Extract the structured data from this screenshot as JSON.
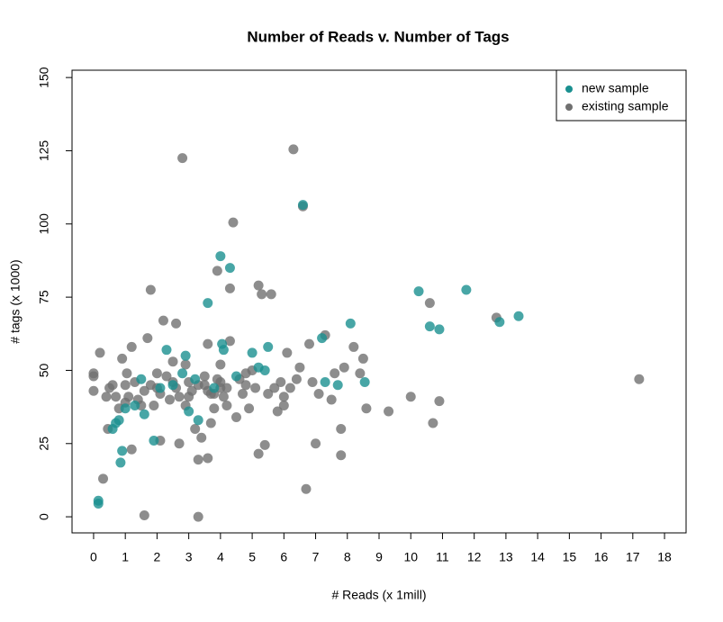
{
  "chart_data": {
    "type": "scatter",
    "title": "Number of Reads v. Number of Tags",
    "xlabel": "# Reads (x 1mill)",
    "ylabel": "# tags (x 1000)",
    "xlim": [
      -0.68,
      18.68
    ],
    "ylim": [
      -5.5,
      152.5
    ],
    "xticks": [
      0,
      1,
      2,
      3,
      4,
      5,
      6,
      7,
      8,
      9,
      10,
      11,
      12,
      13,
      14,
      15,
      16,
      17,
      18
    ],
    "yticks": [
      0,
      25,
      50,
      75,
      100,
      125,
      150
    ],
    "legend": "top-right",
    "series": [
      {
        "name": "new sample",
        "color": "#1a9090",
        "x": [
          0.15,
          0.15,
          0.6,
          0.7,
          0.8,
          0.85,
          0.9,
          1.0,
          1.3,
          1.5,
          1.6,
          1.9,
          2.1,
          2.3,
          2.5,
          2.8,
          2.9,
          3.0,
          3.2,
          3.3,
          3.6,
          3.8,
          4.0,
          4.05,
          4.1,
          4.3,
          4.5,
          5.0,
          5.2,
          5.4,
          5.5,
          6.6,
          7.2,
          7.3,
          7.7,
          8.1,
          8.55,
          10.25,
          10.6,
          10.9,
          11.75,
          12.8,
          13.4
        ],
        "values": [
          4.5,
          5.5,
          30,
          32,
          33,
          18.5,
          22.5,
          37,
          38,
          47,
          35,
          26,
          44,
          57,
          45,
          49,
          55,
          36,
          47,
          33,
          73,
          44,
          89,
          59,
          57,
          85,
          48,
          56,
          51,
          50,
          58,
          106.5,
          61,
          46,
          45,
          66,
          46,
          77,
          65,
          64,
          77.5,
          66.5,
          68.5
        ]
      },
      {
        "name": "existing sample",
        "color": "#707070",
        "x": [
          0,
          0,
          0,
          0.2,
          0.3,
          0.4,
          0.45,
          0.5,
          0.6,
          0.7,
          0.8,
          0.9,
          1.0,
          1.05,
          1.1,
          1.2,
          1.2,
          1.3,
          1.4,
          1.5,
          1.6,
          1.7,
          1.8,
          1.8,
          1.9,
          2.0,
          2.1,
          2.1,
          2.2,
          2.3,
          2.4,
          2.5,
          2.6,
          2.6,
          2.7,
          2.8,
          2.9,
          3.0,
          3.0,
          3.1,
          3.2,
          3.3,
          3.3,
          3.4,
          3.5,
          3.6,
          3.6,
          3.7,
          3.7,
          3.8,
          3.9,
          3.9,
          4.0,
          4.0,
          4.1,
          4.2,
          4.3,
          4.3,
          4.4,
          4.5,
          4.6,
          4.7,
          4.8,
          4.9,
          5.0,
          5.1,
          5.2,
          5.2,
          5.3,
          5.4,
          5.6,
          5.7,
          5.8,
          5.9,
          6.0,
          6.1,
          6.2,
          6.3,
          6.4,
          6.5,
          6.6,
          6.7,
          6.8,
          6.9,
          7.0,
          7.1,
          7.3,
          7.5,
          7.6,
          7.8,
          7.8,
          7.9,
          8.2,
          8.4,
          8.5,
          8.6,
          9.3,
          10.0,
          10.6,
          10.7,
          10.9,
          12.7,
          17.2,
          1.0,
          1.6,
          2.0,
          2.5,
          3.5,
          3.8,
          4.2,
          4.8,
          5.5,
          6.0,
          3.3,
          2.7,
          3.6,
          4.0,
          2.9
        ],
        "values": [
          48,
          49,
          43,
          56,
          13,
          41,
          30,
          44,
          45,
          41,
          37,
          54,
          45,
          49,
          41,
          23,
          58,
          46,
          40,
          38,
          0.5,
          61,
          77.5,
          45,
          38,
          49,
          26,
          42,
          67,
          48,
          40,
          53,
          66,
          44,
          25,
          122.5,
          52,
          46,
          41,
          43,
          30,
          19.5,
          0,
          27,
          45,
          20,
          59,
          32,
          42,
          37,
          84,
          47,
          52,
          44,
          41,
          38,
          78,
          60,
          100.5,
          34,
          47,
          42,
          49,
          37,
          50,
          44,
          79,
          21.5,
          76,
          24.5,
          76,
          44,
          36,
          46,
          38,
          56,
          44,
          125.5,
          47,
          51,
          106,
          9.5,
          59,
          46,
          25,
          42,
          62,
          40,
          49,
          21,
          30,
          51,
          58,
          49,
          54,
          37,
          36,
          41,
          73,
          32,
          39.5,
          68,
          47,
          39,
          43,
          44,
          46,
          48,
          42,
          44,
          45,
          42,
          41,
          45,
          41,
          43,
          46,
          38
        ]
      }
    ]
  }
}
